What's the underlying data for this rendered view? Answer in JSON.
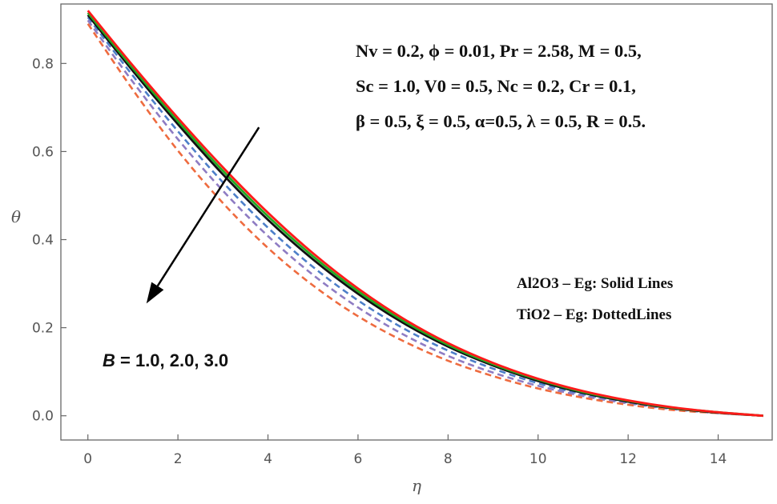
{
  "chart_data": {
    "type": "line",
    "xlabel": "η",
    "ylabel": "θ",
    "xlim": [
      -0.6,
      15.2
    ],
    "ylim": [
      -0.055,
      0.935
    ],
    "xticks": [
      "0",
      "2",
      "4",
      "6",
      "8",
      "10",
      "12",
      "14"
    ],
    "yticks": [
      "0.0",
      "0.2",
      "0.4",
      "0.6",
      "0.8"
    ],
    "xtick_values": [
      0,
      2,
      4,
      6,
      8,
      10,
      12,
      14
    ],
    "ytick_values": [
      0.0,
      0.2,
      0.4,
      0.6,
      0.8
    ],
    "x": [
      0,
      1,
      2,
      3,
      4,
      5,
      6,
      7,
      8,
      9,
      10,
      11,
      12,
      13,
      14,
      15
    ],
    "series": [
      {
        "name": "Al2O3 - Eg, B = 1.0",
        "style": "solid",
        "color": "#ff1a1a",
        "values": [
          0.92,
          0.795,
          0.676,
          0.564,
          0.461,
          0.369,
          0.289,
          0.221,
          0.165,
          0.12,
          0.084,
          0.056,
          0.035,
          0.019,
          0.008,
          0.0
        ]
      },
      {
        "name": "Al2O3 - Eg, B = 2.0",
        "style": "solid",
        "color": "#22aa22",
        "values": [
          0.915,
          0.789,
          0.669,
          0.556,
          0.453,
          0.362,
          0.283,
          0.216,
          0.161,
          0.117,
          0.082,
          0.054,
          0.034,
          0.018,
          0.008,
          0.0
        ]
      },
      {
        "name": "Al2O3 - Eg, B = 3.0",
        "style": "solid",
        "color": "#111111",
        "values": [
          0.91,
          0.783,
          0.662,
          0.548,
          0.445,
          0.355,
          0.277,
          0.211,
          0.157,
          0.114,
          0.079,
          0.052,
          0.032,
          0.017,
          0.007,
          0.0
        ]
      },
      {
        "name": "TiO2 - Eg, B = 1.0",
        "style": "dashed",
        "color": "#4d7fc9",
        "values": [
          0.905,
          0.772,
          0.646,
          0.53,
          0.427,
          0.338,
          0.262,
          0.199,
          0.148,
          0.107,
          0.074,
          0.049,
          0.03,
          0.016,
          0.007,
          0.0
        ]
      },
      {
        "name": "TiO2 - Eg, B = 2.0",
        "style": "dashed",
        "color": "#8e7cc3",
        "values": [
          0.898,
          0.758,
          0.628,
          0.511,
          0.408,
          0.32,
          0.246,
          0.185,
          0.136,
          0.098,
          0.068,
          0.045,
          0.028,
          0.015,
          0.006,
          0.0
        ]
      },
      {
        "name": "TiO2 - Eg, B = 3.0",
        "style": "dashed",
        "color": "#ee6b3f",
        "values": [
          0.89,
          0.74,
          0.602,
          0.483,
          0.381,
          0.296,
          0.226,
          0.17,
          0.125,
          0.09,
          0.062,
          0.041,
          0.025,
          0.013,
          0.006,
          0.0
        ]
      }
    ],
    "arrow": {
      "from": [
        3.8,
        0.655
      ],
      "to": [
        1.3,
        0.255
      ]
    },
    "annotations": {
      "params": [
        "Nv = 0.2, ϕ = 0.01, Pr = 2.58, M = 0.5,",
        "Sc = 1.0, V0 = 0.5, Nc = 0.2, Cr = 0.1,",
        "β = 0.5, ξ = 0.5,  α=0.5, λ = 0.5, R = 0.5."
      ],
      "legend": [
        "Al2O3 – Eg: Solid Lines",
        "TiO2 – Eg: DottedLines"
      ],
      "b_symbol": "B",
      "b_values": " =  1.0, 2.0, 3.0"
    }
  }
}
